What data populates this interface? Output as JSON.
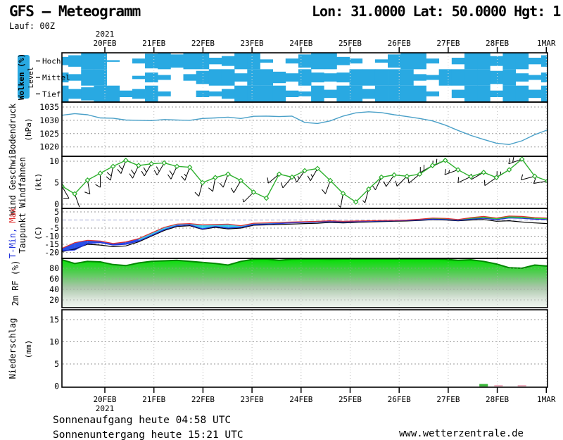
{
  "header": {
    "title": "GFS – Meteogramm",
    "coords": "Lon: 31.0000 Lat: 50.0000 Hgt: 1",
    "run": "Lauf: 00Z"
  },
  "footer": {
    "sunrise": "Sonnenaufgang heute 04:58 UTC",
    "sunset": "Sonnenuntergang heute 15:21 UTC",
    "site": "www.wetterzentrale.de"
  },
  "time": {
    "year": "2021",
    "days": [
      "20FEB",
      "21FEB",
      "22FEB",
      "23FEB",
      "24FEB",
      "25FEB",
      "26FEB",
      "27FEB",
      "28FEB",
      "1MAR"
    ],
    "step_hours": 6,
    "points": 39
  },
  "colors": {
    "cloud": "#29a9e2",
    "pressure_line": "#4aa0c8",
    "wind_line": "#2eb02e",
    "temp_max": "#e03030",
    "temp_min": "#2233dd",
    "dewpoint": "#000000",
    "band_cold": "#2a4fe8",
    "band_cyan": "#3cc8e8",
    "band_warm": "#2ecc40",
    "rf_top_line": "#008800",
    "rf_gradient_top": "#00e000",
    "grid": "#999999"
  },
  "chart_data": [
    {
      "name": "clouds",
      "type": "area",
      "label": "Wolken (%)",
      "axis_label": "Level",
      "levels": [
        "Hoch",
        "Mittel",
        "Tief"
      ],
      "series": [
        {
          "name": "Hoch",
          "values": [
            50,
            70,
            100,
            100,
            10,
            0,
            30,
            90,
            100,
            80,
            100,
            100,
            40,
            60,
            100,
            100,
            20,
            0,
            30,
            80,
            100,
            100,
            50,
            30,
            0,
            20,
            80,
            100,
            100,
            30,
            0,
            40,
            100,
            100,
            60,
            100,
            100,
            40,
            70
          ]
        },
        {
          "name": "Mittel",
          "values": [
            60,
            40,
            100,
            100,
            0,
            0,
            20,
            60,
            30,
            0,
            40,
            80,
            100,
            100,
            50,
            100,
            100,
            70,
            50,
            100,
            60,
            50,
            60,
            100,
            100,
            100,
            100,
            100,
            40,
            30,
            100,
            100,
            100,
            100,
            80,
            100,
            50,
            30,
            60
          ]
        },
        {
          "name": "Tief",
          "values": [
            100,
            60,
            80,
            100,
            100,
            40,
            60,
            100,
            30,
            0,
            0,
            40,
            30,
            60,
            100,
            100,
            100,
            100,
            40,
            30,
            100,
            50,
            100,
            100,
            60,
            100,
            100,
            100,
            100,
            30,
            0,
            50,
            100,
            100,
            40,
            100,
            100,
            50,
            100
          ]
        }
      ]
    },
    {
      "name": "pressure",
      "type": "line",
      "label": "Bodendruck",
      "unit": "(hPa)",
      "yticks": [
        1035,
        1030,
        1025,
        1020
      ],
      "ylim": [
        1016.5,
        1037
      ],
      "values": [
        1031.9,
        1032.5,
        1032.1,
        1030.9,
        1030.8,
        1030.1,
        1030.0,
        1029.9,
        1030.3,
        1030.1,
        1030.0,
        1030.7,
        1030.9,
        1031.2,
        1030.7,
        1031.5,
        1031.6,
        1031.4,
        1031.6,
        1029.2,
        1028.8,
        1029.8,
        1031.6,
        1032.8,
        1033.2,
        1032.9,
        1032.1,
        1031.4,
        1030.7,
        1029.8,
        1028.2,
        1026.2,
        1024.3,
        1022.8,
        1021.4,
        1020.9,
        1022.3,
        1024.6,
        1026.4
      ]
    },
    {
      "name": "wind",
      "type": "line",
      "label": "Wind Geschwi.",
      "label2": "Windfahnen",
      "unit": "(kt)",
      "yticks": [
        10,
        5,
        0
      ],
      "ylim": [
        -1,
        11.2
      ],
      "values": [
        4.2,
        2.4,
        5.6,
        7.2,
        8.8,
        10.2,
        9.0,
        9.4,
        9.6,
        8.8,
        8.6,
        5.0,
        6.2,
        7.0,
        5.5,
        2.8,
        1.4,
        7.0,
        6.3,
        7.8,
        8.3,
        5.5,
        2.5,
        0.5,
        3.5,
        6.3,
        6.8,
        6.5,
        7.0,
        9.0,
        10.2,
        8.0,
        6.4,
        7.4,
        6.2,
        8.0,
        10.5,
        6.5,
        5.4
      ],
      "barb_directions_deg": [
        150,
        160,
        170,
        180,
        190,
        200,
        205,
        210,
        210,
        205,
        200,
        195,
        190,
        200,
        210,
        225,
        240,
        230,
        220,
        215,
        210,
        200,
        190,
        185,
        195,
        205,
        215,
        225,
        230,
        240,
        245,
        250,
        245,
        240,
        235,
        240,
        250,
        255,
        260
      ]
    },
    {
      "name": "temperature",
      "type": "line",
      "label_min": "T-Min, ",
      "label_max": "Max",
      "label2": "Taupunkt",
      "unit": "(C)",
      "yticks": [
        5,
        0,
        -5,
        -10,
        -15,
        -20
      ],
      "ylim": [
        -23.5,
        7.2
      ],
      "series": [
        {
          "name": "Tmax",
          "values": [
            -17.5,
            -14.0,
            -12.5,
            -13.0,
            -14.5,
            -13.5,
            -11.5,
            -8.0,
            -4.5,
            -2.5,
            -2.2,
            -3.0,
            -2.8,
            -2.5,
            -3.5,
            -2.0,
            -1.8,
            -1.5,
            -1.2,
            -1.0,
            -0.8,
            -0.5,
            -0.8,
            -0.6,
            -0.5,
            -0.3,
            -0.2,
            0.0,
            0.5,
            1.2,
            1.0,
            0.3,
            1.5,
            2.2,
            1.2,
            2.5,
            2.2,
            1.5,
            1.2
          ]
        },
        {
          "name": "Tmin",
          "values": [
            -19.0,
            -18.5,
            -14.5,
            -14.0,
            -15.5,
            -15.0,
            -13.0,
            -9.5,
            -6.0,
            -3.5,
            -3.0,
            -5.5,
            -4.0,
            -5.0,
            -4.5,
            -2.8,
            -2.5,
            -2.2,
            -1.8,
            -1.5,
            -1.2,
            -1.0,
            -1.2,
            -1.0,
            -0.8,
            -0.6,
            -0.5,
            -0.3,
            0.0,
            0.5,
            0.3,
            -0.2,
            0.5,
            1.0,
            0.2,
            1.2,
            1.0,
            0.5,
            0.3
          ]
        },
        {
          "name": "Taupunkt",
          "values": [
            -19.5,
            -18.0,
            -15.0,
            -15.5,
            -16.5,
            -16.0,
            -13.5,
            -10.0,
            -6.5,
            -4.0,
            -3.5,
            -5.8,
            -4.5,
            -5.5,
            -5.0,
            -3.2,
            -3.0,
            -2.8,
            -2.5,
            -2.2,
            -2.0,
            -1.5,
            -1.8,
            -1.5,
            -1.2,
            -1.0,
            -0.8,
            -0.6,
            -0.3,
            0.2,
            0.0,
            -0.5,
            0.0,
            0.3,
            -0.8,
            -0.5,
            -1.2,
            -1.8,
            -2.2
          ]
        }
      ]
    },
    {
      "name": "humidity",
      "type": "area",
      "label": "2m RF (%)",
      "yticks": [
        80,
        60,
        40,
        20
      ],
      "ylim": [
        0,
        100
      ],
      "values": [
        96,
        89,
        93,
        92,
        87,
        85,
        90,
        93,
        94,
        95,
        93,
        91,
        89,
        86,
        93,
        97,
        98,
        95,
        97,
        99,
        98,
        97,
        99,
        98,
        99,
        98,
        99,
        99,
        98,
        99,
        97,
        95,
        96,
        93,
        88,
        81,
        80,
        86,
        84
      ]
    },
    {
      "name": "precipitation",
      "type": "bar",
      "label": "Niederschlag",
      "unit": "(mm)",
      "yticks": [
        15,
        10,
        5,
        0
      ],
      "ylim": [
        0,
        17.5
      ],
      "bars": [
        {
          "t1": 196,
          "t2": 200,
          "mm": 0.5,
          "color": "#3cb83c"
        },
        {
          "t1": 203,
          "t2": 207,
          "mm": 0.25,
          "color": "#f0b4c4"
        },
        {
          "t1": 214,
          "t2": 218,
          "mm": 0.25,
          "color": "#f0b4c4"
        }
      ]
    }
  ]
}
